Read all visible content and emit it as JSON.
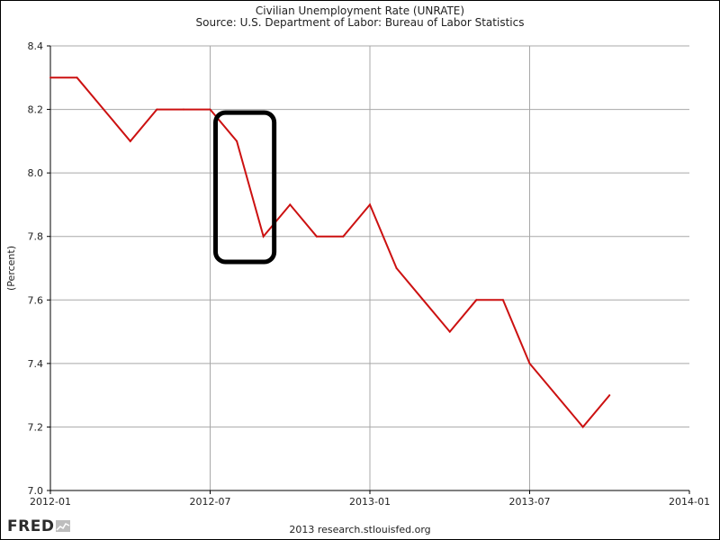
{
  "chart_data": {
    "type": "line",
    "title": "Civilian Unemployment Rate (UNRATE)",
    "subtitle": "Source: U.S. Department of Labor: Bureau of Labor Statistics",
    "xlabel": "",
    "ylabel": "(Percent)",
    "x_ticks": [
      "2012-01",
      "2012-07",
      "2013-01",
      "2013-07",
      "2014-01"
    ],
    "y_ticks": [
      "7.0",
      "7.2",
      "7.4",
      "7.6",
      "7.8",
      "8.0",
      "8.2",
      "8.4"
    ],
    "ylim": [
      7.0,
      8.4
    ],
    "xlim": [
      "2012-01",
      "2014-01"
    ],
    "grid": true,
    "series": [
      {
        "color": "#cc1111",
        "points": [
          {
            "x": "2012-01",
            "y": 8.3
          },
          {
            "x": "2012-02",
            "y": 8.3
          },
          {
            "x": "2012-03",
            "y": 8.2
          },
          {
            "x": "2012-04",
            "y": 8.1
          },
          {
            "x": "2012-05",
            "y": 8.2
          },
          {
            "x": "2012-06",
            "y": 8.2
          },
          {
            "x": "2012-07",
            "y": 8.2
          },
          {
            "x": "2012-08",
            "y": 8.1
          },
          {
            "x": "2012-09",
            "y": 7.8
          },
          {
            "x": "2012-10",
            "y": 7.9
          },
          {
            "x": "2012-11",
            "y": 7.8
          },
          {
            "x": "2012-12",
            "y": 7.8
          },
          {
            "x": "2013-01",
            "y": 7.9
          },
          {
            "x": "2013-02",
            "y": 7.7
          },
          {
            "x": "2013-03",
            "y": 7.6
          },
          {
            "x": "2013-04",
            "y": 7.5
          },
          {
            "x": "2013-05",
            "y": 7.6
          },
          {
            "x": "2013-06",
            "y": 7.6
          },
          {
            "x": "2013-07",
            "y": 7.4
          },
          {
            "x": "2013-08",
            "y": 7.3
          },
          {
            "x": "2013-09",
            "y": 7.2
          },
          {
            "x": "2013-10",
            "y": 7.3
          }
        ]
      }
    ],
    "annotations": [
      {
        "type": "rounded-rectangle",
        "from_x": "2012-07",
        "to_x": "2012-09",
        "from_y": 7.72,
        "to_y": 8.19,
        "color": "#000000"
      }
    ]
  },
  "footer": {
    "logo": "FRED",
    "credit": "2013 research.stlouisfed.org"
  }
}
